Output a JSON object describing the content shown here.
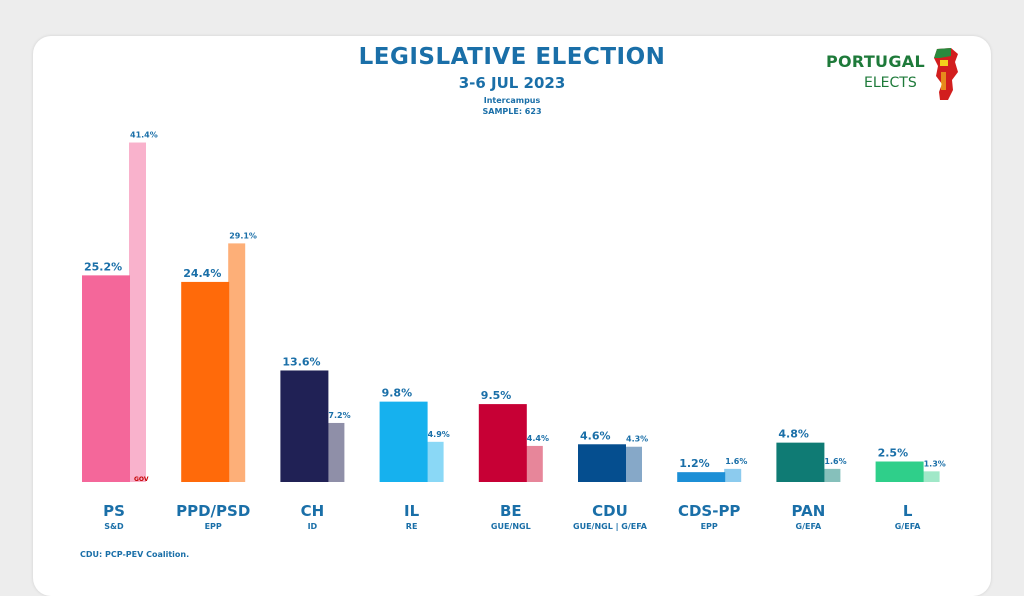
{
  "header": {
    "title": "LEGISLATIVE ELECTION",
    "dates": "3-6 JUL 2023",
    "pollster": "Intercampus",
    "sample": "SAMPLE: 623"
  },
  "logo": {
    "line1": "PORTUGAL",
    "line2": "ELECTS"
  },
  "footnote": "CDU: PCP-PEV Coalition.",
  "chart_data": {
    "type": "bar",
    "ylim": [
      0,
      45
    ],
    "grid": false,
    "categories": [
      {
        "party": "PS",
        "group": "S&D",
        "value": 25.2,
        "previous": 41.4,
        "color": "#f4679a",
        "prev_color": "#f9b2cc",
        "marker": "GOV"
      },
      {
        "party": "PPD/PSD",
        "group": "EPP",
        "value": 24.4,
        "previous": 29.1,
        "color": "#ff6a0a",
        "prev_color": "#fdaf78"
      },
      {
        "party": "CH",
        "group": "ID",
        "value": 13.6,
        "previous": 7.2,
        "color": "#202155",
        "prev_color": "#8f8fa8"
      },
      {
        "party": "IL",
        "group": "RE",
        "value": 9.8,
        "previous": 4.9,
        "color": "#16b1ee",
        "prev_color": "#8ad8f6"
      },
      {
        "party": "BE",
        "group": "GUE/NGL",
        "value": 9.5,
        "previous": 4.4,
        "color": "#c70035",
        "prev_color": "#e7869a"
      },
      {
        "party": "CDU",
        "group": "GUE/NGL | G/EFA",
        "value": 4.6,
        "previous": 4.3,
        "color": "#054e8f",
        "prev_color": "#86a8c8"
      },
      {
        "party": "CDS-PP",
        "group": "EPP",
        "value": 1.2,
        "previous": 1.6,
        "color": "#1c8fd6",
        "prev_color": "#8ccbee"
      },
      {
        "party": "PAN",
        "group": "G/EFA",
        "value": 4.8,
        "previous": 1.6,
        "color": "#0f7b74",
        "prev_color": "#86c0bb"
      },
      {
        "party": "L",
        "group": "G/EFA",
        "value": 2.5,
        "previous": 1.3,
        "color": "#2fcf8a",
        "prev_color": "#a0e8c8"
      }
    ],
    "colors": {
      "text": "#1a6fa8",
      "gov_marker": "#c40000"
    }
  }
}
